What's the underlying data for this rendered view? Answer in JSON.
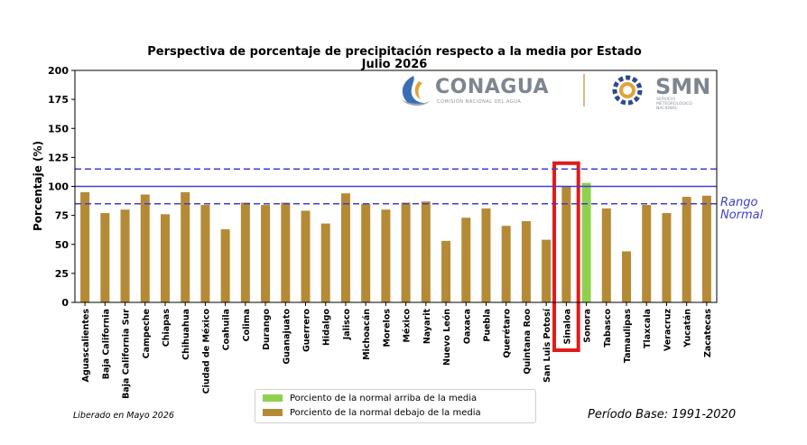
{
  "chart_data": {
    "type": "bar",
    "title_line1": "Perspectiva de porcentaje de precipitación respecto a la media por Estado",
    "title_line2": "Julio 2026",
    "ylabel": "Porcentaje (%)",
    "ylim": [
      0,
      200
    ],
    "yticks": [
      "0",
      "25",
      "50",
      "75",
      "100",
      "125",
      "150",
      "175",
      "200"
    ],
    "reference_lines": {
      "normal": 100,
      "range_low": 85,
      "range_high": 115
    },
    "range_label_line1": "Rango",
    "range_label_line2": "Normal",
    "categories": [
      "Aguascalientes",
      "Baja California",
      "Baja California Sur",
      "Campeche",
      "Chiapas",
      "Chihuahua",
      "Ciudad de México",
      "Coahuila",
      "Colima",
      "Durango",
      "Guanajuato",
      "Guerrero",
      "Hidalgo",
      "Jalisco",
      "Michoacán",
      "Morelos",
      "México",
      "Nayarit",
      "Nuevo León",
      "Oaxaca",
      "Puebla",
      "Querétaro",
      "Quintana Roo",
      "San Luis Potosí",
      "Sinaloa",
      "Sonora",
      "Tabasco",
      "Tamaulipas",
      "Tlaxcala",
      "Veracruz",
      "Yucatán",
      "Zacatecas"
    ],
    "values": [
      95,
      77,
      80,
      93,
      76,
      95,
      84,
      63,
      86,
      84,
      86,
      79,
      68,
      94,
      85,
      80,
      86,
      87,
      53,
      73,
      81,
      66,
      70,
      54,
      100,
      103,
      81,
      44,
      84,
      77,
      91,
      92
    ],
    "above_mean_color": "#8fd14f",
    "below_mean_color": "#b58a36",
    "highlight_category": "Sinaloa",
    "highlight_color": "#e01b1b",
    "grid": false
  },
  "legend": {
    "above_label": "Porciento de la normal arriba de la media",
    "below_label": "Porciento de la normal debajo de la media"
  },
  "logos": {
    "conagua_name": "CONAGUA",
    "conagua_subtitle": "COMISIÓN NACIONAL DEL AGUA",
    "smn_name": "SMN",
    "smn_subtitle": "SERVICIO METEOROLÓGICO NACIONAL"
  },
  "footer": {
    "released": "Liberado en Mayo 2026",
    "base_period": "Período Base: 1991-2020"
  }
}
